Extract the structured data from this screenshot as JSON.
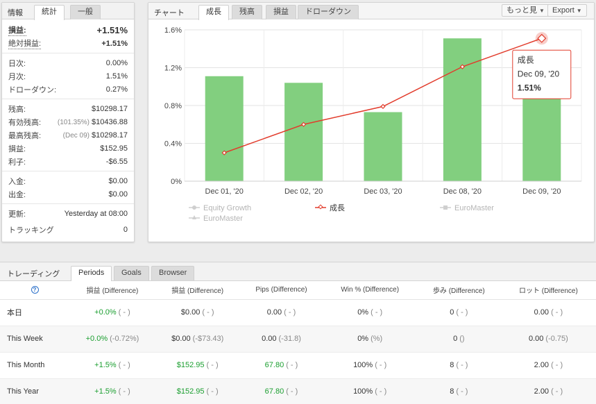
{
  "info_panel": {
    "title": "情報",
    "tabs": [
      "統計",
      "一般"
    ],
    "rows": [
      {
        "label": "損益:",
        "value": "+1.51%"
      },
      {
        "label": "絶対損益:",
        "value": "+1.51%"
      },
      {
        "label": "日次:",
        "value": "0.00%"
      },
      {
        "label": "月次:",
        "value": "1.51%"
      },
      {
        "label": "ドローダウン:",
        "value": "0.27%"
      },
      {
        "label": "残高:",
        "value": "$10298.17"
      },
      {
        "label": "有効残高:",
        "note": "(101.35%)",
        "value": "$10436.88"
      },
      {
        "label": "最高残高:",
        "note": "(Dec 09)",
        "value": "$10298.17"
      },
      {
        "label": "損益:",
        "value": "$152.95"
      },
      {
        "label": "利子:",
        "value": "-$6.55"
      },
      {
        "label": "入金:",
        "value": "$0.00"
      },
      {
        "label": "出金:",
        "value": "$0.00"
      },
      {
        "label": "更新:",
        "value": "Yesterday at 08:00"
      },
      {
        "label": "トラッキング",
        "value": "0"
      }
    ]
  },
  "chart_panel": {
    "title": "チャート",
    "tabs": [
      "成長",
      "残高",
      "損益",
      "ドローダウン"
    ],
    "more_label": "もっと見",
    "export_label": "Export",
    "tooltip": {
      "series": "成長",
      "date": "Dec 09, '20",
      "value": "1.51%"
    },
    "legend": [
      "Equity Growth",
      "成長",
      "EuroMaster",
      "EuroMaster"
    ]
  },
  "chart_data": {
    "type": "bar",
    "categories": [
      "Dec 01, '20",
      "Dec 02, '20",
      "Dec 03, '20",
      "Dec 08, '20",
      "Dec 09, '20"
    ],
    "series": [
      {
        "type": "bar",
        "values": [
          1.11,
          1.04,
          0.73,
          1.51,
          1.04
        ]
      },
      {
        "name": "成長",
        "type": "line",
        "values": [
          0.3,
          0.6,
          0.79,
          1.21,
          1.51
        ]
      }
    ],
    "y_ticks": [
      "0%",
      "0.4%",
      "0.8%",
      "1.2%",
      "1.6%"
    ],
    "ylim": [
      0,
      1.6
    ],
    "bar_color": "#82cf7f",
    "line_color": "#e23c2c",
    "grid": true,
    "legend_position": "bottom"
  },
  "trading_panel": {
    "title": "トレーディング",
    "tabs": [
      "Periods",
      "Goals",
      "Browser"
    ],
    "help_icon": "?",
    "columns": [
      "損益 (Difference)",
      "損益 (Difference)",
      "Pips (Difference)",
      "Win % (Difference)",
      "歩み (Difference)",
      "ロット (Difference)"
    ],
    "rows": [
      {
        "label": "本日",
        "cells": [
          [
            "+0.0%",
            "( - )"
          ],
          [
            "$0.00",
            "( - )"
          ],
          [
            "0.00",
            "( - )"
          ],
          [
            "0%",
            "( - )"
          ],
          [
            "0",
            "( - )"
          ],
          [
            "0.00",
            "( - )"
          ]
        ]
      },
      {
        "label": "This Week",
        "cells": [
          [
            "+0.0%",
            "(-0.72%)"
          ],
          [
            "$0.00",
            "(-$73.43)"
          ],
          [
            "0.00",
            "(-31.8)"
          ],
          [
            "0%",
            "(%)"
          ],
          [
            "0",
            "()"
          ],
          [
            "0.00",
            "(-0.75)"
          ]
        ]
      },
      {
        "label": "This Month",
        "cells": [
          [
            "+1.5%",
            "( - )"
          ],
          [
            "$152.95",
            "( - )"
          ],
          [
            "67.80",
            "( - )"
          ],
          [
            "100%",
            "( - )"
          ],
          [
            "8",
            "( - )"
          ],
          [
            "2.00",
            "( - )"
          ]
        ]
      },
      {
        "label": "This Year",
        "cells": [
          [
            "+1.5%",
            "( - )"
          ],
          [
            "$152.95",
            "( - )"
          ],
          [
            "67.80",
            "( - )"
          ],
          [
            "100%",
            "( - )"
          ],
          [
            "8",
            "( - )"
          ],
          [
            "2.00",
            "( - )"
          ]
        ]
      }
    ]
  }
}
